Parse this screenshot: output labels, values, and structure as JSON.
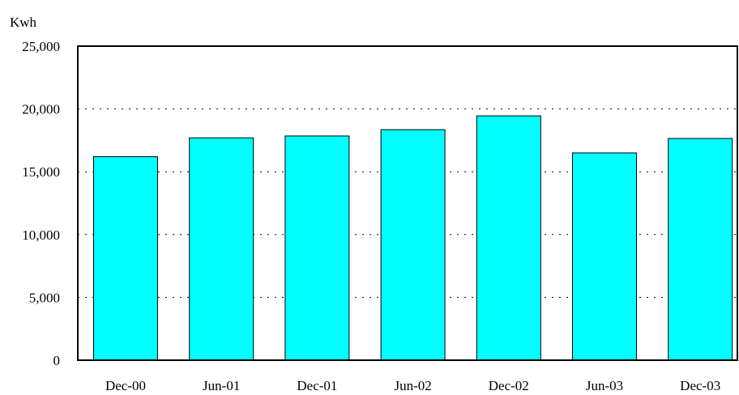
{
  "chart_data": {
    "type": "bar",
    "title": "",
    "xlabel": "",
    "ylabel": "Kwh",
    "categories": [
      "Dec-00",
      "Jun-01",
      "Dec-01",
      "Jun-02",
      "Dec-02",
      "Jun-03",
      "Dec-03"
    ],
    "values": [
      16200,
      17700,
      17850,
      18350,
      19450,
      16500,
      17650
    ],
    "ylim": [
      0,
      25000
    ],
    "yticks": [
      0,
      5000,
      10000,
      15000,
      20000,
      25000
    ],
    "ytick_labels": [
      "0",
      "5,000",
      "10,000",
      "15,000",
      "20,000",
      "25,000"
    ],
    "grid": true,
    "grid_style": "dotted",
    "bar_color": "#00FFFF",
    "bar_edge_color": "#000000",
    "legend": false
  }
}
